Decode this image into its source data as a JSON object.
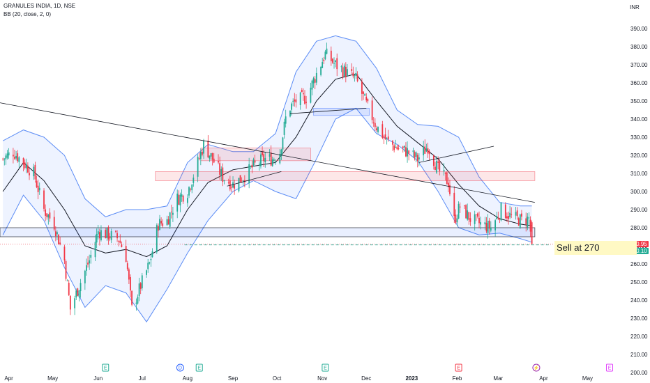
{
  "header": {
    "symbol_line": "GRANULES INDIA, 1D, NSE",
    "indicator_line": "BB (20, close, 2, 0)",
    "currency": "INR"
  },
  "price_tags": {
    "upper": {
      "text": "270.95",
      "color": "#f23645"
    },
    "lower": {
      "text": "270.10",
      "color": "#22ab94"
    }
  },
  "annotation": {
    "text": "Sell at 270"
  },
  "event_markers": [
    {
      "label": "E",
      "date": "2022-06-06",
      "kind": "earnings"
    },
    {
      "label": "D",
      "date": "2022-07-27",
      "kind": "dividend"
    },
    {
      "label": "E",
      "date": "2022-08-09",
      "kind": "earnings"
    },
    {
      "label": "E",
      "date": "2022-11-03",
      "kind": "earnings"
    },
    {
      "label": "E",
      "date": "2023-02-02",
      "kind": "earnings"
    },
    {
      "label": "⚡",
      "date": "2023-03-27",
      "kind": "split"
    },
    {
      "label": "E",
      "date": "2023-05-16",
      "kind": "earnings"
    }
  ],
  "colors": {
    "up": "#22ab94",
    "down": "#f23645",
    "band": "#5b8cf5",
    "basis": "#131722",
    "band_fill": "rgba(41,98,255,0.08)",
    "marker_earnings": "#22ab94",
    "marker_dividend": "#2962ff",
    "marker_split": "#9c27b0",
    "marker_upcoming": "#e040fb"
  },
  "chart_data": {
    "type": "candlestick",
    "title": "GRANULES INDIA, 1D, NSE",
    "x_range": [
      "2022-03-26",
      "2023-05-26"
    ],
    "y_range": [
      200,
      390
    ],
    "y_ticks": [
      200,
      210,
      220,
      230,
      240,
      250,
      260,
      270,
      280,
      290,
      300,
      310,
      320,
      330,
      340,
      350,
      360,
      370,
      380,
      390
    ],
    "y_tick_labels": [
      "200.00",
      "210.00",
      "220.00",
      "230.00",
      "240.00",
      "250.00",
      "260.00",
      "270.00",
      "280.00",
      "290.00",
      "300.00",
      "310.00",
      "320.00",
      "330.00",
      "340.00",
      "350.00",
      "360.00",
      "370.00",
      "380.00",
      "390.00"
    ],
    "x_ticks": [
      {
        "label": "Apr",
        "date": "2022-04-01"
      },
      {
        "label": "May",
        "date": "2022-05-01"
      },
      {
        "label": "Jun",
        "date": "2022-06-01"
      },
      {
        "label": "Jul",
        "date": "2022-07-01"
      },
      {
        "label": "Aug",
        "date": "2022-08-01"
      },
      {
        "label": "Sep",
        "date": "2022-09-01"
      },
      {
        "label": "Oct",
        "date": "2022-10-01"
      },
      {
        "label": "Nov",
        "date": "2022-11-01"
      },
      {
        "label": "Dec",
        "date": "2022-12-01"
      },
      {
        "label": "2023",
        "date": "2023-01-01"
      },
      {
        "label": "Feb",
        "date": "2023-02-01"
      },
      {
        "label": "Mar",
        "date": "2023-03-01"
      },
      {
        "label": "Apr",
        "date": "2023-04-01"
      },
      {
        "label": "May",
        "date": "2023-05-01"
      }
    ],
    "price_path": [
      [
        "2022-03-28",
        318
      ],
      [
        "2022-04-04",
        322
      ],
      [
        "2022-04-11",
        316
      ],
      [
        "2022-04-18",
        310
      ],
      [
        "2022-04-25",
        290
      ],
      [
        "2022-05-02",
        282
      ],
      [
        "2022-05-09",
        262
      ],
      [
        "2022-05-13",
        235
      ],
      [
        "2022-05-20",
        250
      ],
      [
        "2022-05-26",
        262
      ],
      [
        "2022-06-01",
        278
      ],
      [
        "2022-06-08",
        276
      ],
      [
        "2022-06-15",
        274
      ],
      [
        "2022-06-20",
        264
      ],
      [
        "2022-06-24",
        235
      ],
      [
        "2022-06-30",
        248
      ],
      [
        "2022-07-06",
        260
      ],
      [
        "2022-07-12",
        282
      ],
      [
        "2022-07-18",
        284
      ],
      [
        "2022-07-25",
        296
      ],
      [
        "2022-08-01",
        300
      ],
      [
        "2022-08-08",
        316
      ],
      [
        "2022-08-12",
        326
      ],
      [
        "2022-08-18",
        318
      ],
      [
        "2022-08-25",
        308
      ],
      [
        "2022-09-01",
        304
      ],
      [
        "2022-09-08",
        308
      ],
      [
        "2022-09-15",
        314
      ],
      [
        "2022-09-22",
        318
      ],
      [
        "2022-09-28",
        318
      ],
      [
        "2022-10-03",
        322
      ],
      [
        "2022-10-08",
        345
      ],
      [
        "2022-10-14",
        350
      ],
      [
        "2022-10-21",
        352
      ],
      [
        "2022-10-28",
        365
      ],
      [
        "2022-11-03",
        376
      ],
      [
        "2022-11-10",
        370
      ],
      [
        "2022-11-17",
        366
      ],
      [
        "2022-11-24",
        362
      ],
      [
        "2022-12-01",
        348
      ],
      [
        "2022-12-08",
        336
      ],
      [
        "2022-12-15",
        328
      ],
      [
        "2022-12-22",
        324
      ],
      [
        "2022-12-29",
        322
      ],
      [
        "2023-01-05",
        318
      ],
      [
        "2023-01-12",
        325
      ],
      [
        "2023-01-19",
        312
      ],
      [
        "2023-01-26",
        305
      ],
      [
        "2023-01-30",
        284
      ],
      [
        "2023-02-03",
        292
      ],
      [
        "2023-02-10",
        285
      ],
      [
        "2023-02-17",
        282
      ],
      [
        "2023-02-24",
        280
      ],
      [
        "2023-03-03",
        290
      ],
      [
        "2023-03-10",
        286
      ],
      [
        "2023-03-17",
        284
      ],
      [
        "2023-03-22",
        285
      ],
      [
        "2023-03-24",
        270.95
      ]
    ],
    "bollinger": {
      "basis": [
        [
          "2022-03-28",
          300
        ],
        [
          "2022-04-11",
          316
        ],
        [
          "2022-04-25",
          306
        ],
        [
          "2022-05-09",
          290
        ],
        [
          "2022-05-23",
          270
        ],
        [
          "2022-06-06",
          266
        ],
        [
          "2022-06-20",
          268
        ],
        [
          "2022-07-04",
          264
        ],
        [
          "2022-07-18",
          270
        ],
        [
          "2022-08-01",
          290
        ],
        [
          "2022-08-15",
          305
        ],
        [
          "2022-09-01",
          312
        ],
        [
          "2022-09-15",
          314
        ],
        [
          "2022-09-30",
          316
        ],
        [
          "2022-10-14",
          330
        ],
        [
          "2022-10-28",
          350
        ],
        [
          "2022-11-10",
          362
        ],
        [
          "2022-11-24",
          365
        ],
        [
          "2022-12-08",
          350
        ],
        [
          "2022-12-22",
          336
        ],
        [
          "2023-01-05",
          327
        ],
        [
          "2023-01-19",
          318
        ],
        [
          "2023-02-02",
          304
        ],
        [
          "2023-02-16",
          292
        ],
        [
          "2023-03-02",
          285
        ],
        [
          "2023-03-16",
          282
        ],
        [
          "2023-03-24",
          281
        ]
      ],
      "upper": [
        [
          "2022-03-28",
          328
        ],
        [
          "2022-04-11",
          334
        ],
        [
          "2022-04-25",
          330
        ],
        [
          "2022-05-09",
          320
        ],
        [
          "2022-05-23",
          296
        ],
        [
          "2022-06-06",
          286
        ],
        [
          "2022-06-20",
          290
        ],
        [
          "2022-07-04",
          290
        ],
        [
          "2022-07-18",
          292
        ],
        [
          "2022-08-01",
          316
        ],
        [
          "2022-08-15",
          326
        ],
        [
          "2022-09-01",
          322
        ],
        [
          "2022-09-15",
          322
        ],
        [
          "2022-09-30",
          332
        ],
        [
          "2022-10-14",
          366
        ],
        [
          "2022-10-28",
          383
        ],
        [
          "2022-11-10",
          386
        ],
        [
          "2022-11-24",
          383
        ],
        [
          "2022-12-08",
          368
        ],
        [
          "2022-12-22",
          345
        ],
        [
          "2023-01-05",
          337
        ],
        [
          "2023-01-19",
          336
        ],
        [
          "2023-02-02",
          330
        ],
        [
          "2023-02-16",
          308
        ],
        [
          "2023-03-02",
          294
        ],
        [
          "2023-03-16",
          292
        ],
        [
          "2023-03-24",
          292
        ]
      ],
      "lower": [
        [
          "2022-03-28",
          276
        ],
        [
          "2022-04-11",
          298
        ],
        [
          "2022-04-25",
          284
        ],
        [
          "2022-05-09",
          258
        ],
        [
          "2022-05-23",
          236
        ],
        [
          "2022-06-06",
          248
        ],
        [
          "2022-06-20",
          244
        ],
        [
          "2022-07-04",
          228
        ],
        [
          "2022-07-18",
          246
        ],
        [
          "2022-08-01",
          266
        ],
        [
          "2022-08-15",
          284
        ],
        [
          "2022-09-01",
          300
        ],
        [
          "2022-09-15",
          306
        ],
        [
          "2022-09-30",
          300
        ],
        [
          "2022-10-14",
          296
        ],
        [
          "2022-10-28",
          318
        ],
        [
          "2022-11-10",
          340
        ],
        [
          "2022-11-24",
          346
        ],
        [
          "2022-12-08",
          332
        ],
        [
          "2022-12-22",
          326
        ],
        [
          "2023-01-05",
          317
        ],
        [
          "2023-01-19",
          300
        ],
        [
          "2023-02-02",
          280
        ],
        [
          "2023-02-16",
          276
        ],
        [
          "2023-03-02",
          277
        ],
        [
          "2023-03-16",
          274
        ],
        [
          "2023-03-24",
          272
        ]
      ]
    },
    "drawings": [
      {
        "kind": "trendline",
        "from": [
          "2022-03-26",
          349
        ],
        "to": [
          "2023-03-26",
          294
        ]
      },
      {
        "kind": "support_zone",
        "from": [
          "2022-03-26",
          280
        ],
        "to": [
          "2023-03-26",
          275
        ],
        "color": "#2962ff"
      },
      {
        "kind": "zone",
        "from": [
          "2022-07-10",
          311
        ],
        "to": [
          "2023-03-26",
          306
        ],
        "color": "#f23645"
      },
      {
        "kind": "zone",
        "from": [
          "2022-08-10",
          324
        ],
        "to": [
          "2022-10-24",
          317
        ],
        "color": "#f23645"
      },
      {
        "kind": "zone",
        "from": [
          "2022-10-26",
          346
        ],
        "to": [
          "2022-12-03",
          342
        ],
        "color": "#2962ff"
      },
      {
        "kind": "trendline",
        "from": [
          "2022-08-28",
          303
        ],
        "to": [
          "2022-10-04",
          311
        ]
      },
      {
        "kind": "trendline",
        "from": [
          "2022-10-10",
          343
        ],
        "to": [
          "2022-12-01",
          346
        ]
      },
      {
        "kind": "trendline",
        "from": [
          "2023-01-06",
          316
        ],
        "to": [
          "2023-02-26",
          325
        ]
      },
      {
        "kind": "target_line",
        "from": [
          "2022-07-30",
          270.5
        ],
        "to": [
          "2023-04-06",
          270.5
        ]
      }
    ],
    "last_price": 270.95,
    "target_price": 270.1
  }
}
